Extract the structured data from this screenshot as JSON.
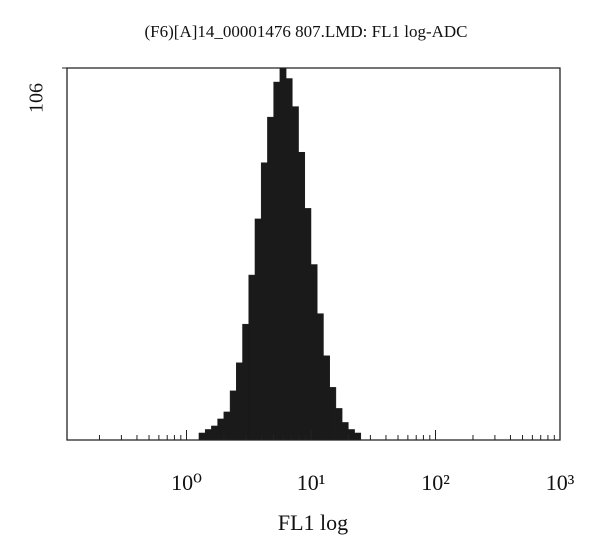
{
  "chart_data": {
    "type": "histogram",
    "title": "(F6)[A]14_00001476 807.LMD: FL1 log-ADC",
    "x_label": "FL1 log",
    "log_x": true,
    "color": "#1a1a1a",
    "bins": [
      1.259,
      1.413,
      1.585,
      1.778,
      1.995,
      2.239,
      2.512,
      2.818,
      3.162,
      3.548,
      3.981,
      4.467,
      5.012,
      5.623,
      6.31,
      7.079,
      7.943,
      8.913,
      10,
      11.22,
      12.59,
      14.13,
      15.85,
      17.78,
      19.95,
      22.39,
      25.12
    ],
    "values": [
      2,
      3,
      4,
      6,
      8,
      14,
      22,
      33,
      47,
      63,
      79,
      92,
      102,
      106,
      103,
      95,
      82,
      66,
      50,
      36,
      24,
      15,
      9,
      5,
      3,
      2
    ],
    "xlim": [
      0.1,
      1000
    ],
    "ylim": [
      0,
      106
    ],
    "xticks": [
      {
        "value": 1,
        "label": "10⁰"
      },
      {
        "value": 10,
        "label": "10¹"
      },
      {
        "value": 100,
        "label": "10²"
      },
      {
        "value": 1000,
        "label": "10³"
      }
    ],
    "xminorticks": [
      0.2,
      0.3,
      0.4,
      0.5,
      0.6,
      0.7,
      0.8,
      0.9,
      2,
      3,
      4,
      5,
      6,
      7,
      8,
      9,
      20,
      30,
      40,
      50,
      60,
      70,
      80,
      90,
      200,
      300,
      400,
      500,
      600,
      700,
      800,
      900
    ],
    "yticks": [
      106
    ]
  }
}
